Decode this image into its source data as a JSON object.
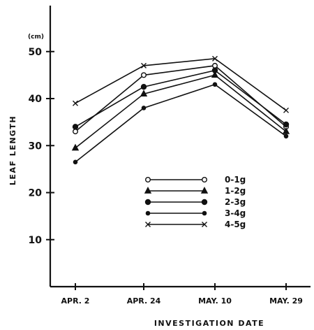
{
  "chart_data": {
    "type": "line",
    "title": "",
    "xlabel": "INVESTIGATION DATE",
    "ylabel": "LEAF LENGTH",
    "yunit": "(cm)",
    "categories": [
      "APR. 2",
      "APR. 24",
      "MAY. 10",
      "MAY. 29"
    ],
    "ylim": [
      0,
      55
    ],
    "yticks": [
      10,
      20,
      30,
      40,
      50
    ],
    "grid": false,
    "legend_position": "center-right",
    "series": [
      {
        "name": "0-1g",
        "marker": "open-circle",
        "values": [
          33,
          45,
          47,
          34
        ]
      },
      {
        "name": "1-2g",
        "marker": "triangle",
        "values": [
          29.5,
          41,
          45,
          33
        ]
      },
      {
        "name": "2-3g",
        "marker": "filled-circle",
        "values": [
          34,
          42.5,
          46,
          34.5
        ]
      },
      {
        "name": "3-4g",
        "marker": "small-circle",
        "values": [
          26.5,
          38,
          43,
          32
        ]
      },
      {
        "name": "4-5g",
        "marker": "cross",
        "values": [
          39,
          47,
          48.5,
          37.5
        ]
      }
    ]
  }
}
